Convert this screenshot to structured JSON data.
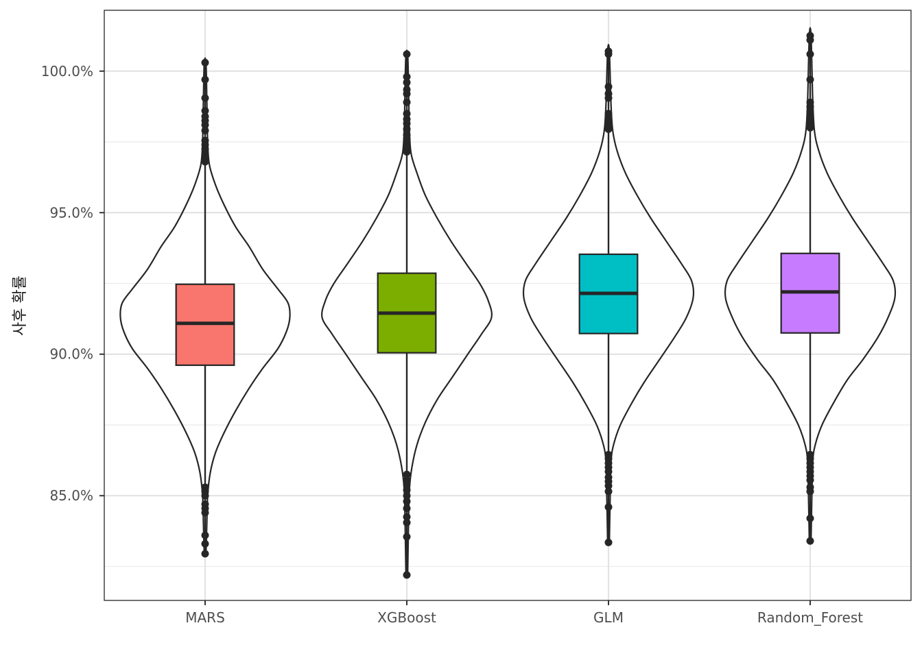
{
  "chart_data": {
    "type": "violin+box",
    "title": "",
    "xlabel": "",
    "ylabel": "사후 확률",
    "ylim": [
      81.3,
      102.15
    ],
    "y_ticks": [
      85,
      90,
      95,
      100
    ],
    "y_tick_labels": [
      "85.0%",
      "90.0%",
      "95.0%",
      "100.0%"
    ],
    "y_minor_ticks": [
      82.5,
      87.5,
      92.5,
      97.5
    ],
    "grid": true,
    "legend": "none",
    "categories": [
      "MARS",
      "XGBoost",
      "GLM",
      "Random_Forest"
    ],
    "series": [
      {
        "name": "MARS",
        "color": "#F8766D",
        "q1": 89.61,
        "median": 91.09,
        "q3": 92.47,
        "whisker_low": 85.45,
        "whisker_high": 96.7,
        "outliers_high": [
          96.8,
          96.95,
          97.1,
          97.25,
          97.4,
          97.55,
          97.9,
          98.1,
          98.25,
          98.4,
          98.6,
          99.05,
          99.7,
          100.3
        ],
        "outliers_low": [
          85.3,
          85.15,
          85.0,
          84.7,
          84.55,
          84.4,
          83.6,
          83.3,
          82.95
        ],
        "violin": [
          [
            82.95,
            0.01
          ],
          [
            84.0,
            0.02
          ],
          [
            85.0,
            0.03
          ],
          [
            85.8,
            0.06
          ],
          [
            86.5,
            0.12
          ],
          [
            87.2,
            0.22
          ],
          [
            88.0,
            0.36
          ],
          [
            88.8,
            0.52
          ],
          [
            89.5,
            0.68
          ],
          [
            90.2,
            0.86
          ],
          [
            90.8,
            0.96
          ],
          [
            91.3,
            1.0
          ],
          [
            91.8,
            0.98
          ],
          [
            92.3,
            0.86
          ],
          [
            93.0,
            0.68
          ],
          [
            93.8,
            0.52
          ],
          [
            94.5,
            0.36
          ],
          [
            95.3,
            0.22
          ],
          [
            96.0,
            0.12
          ],
          [
            96.7,
            0.05
          ],
          [
            97.5,
            0.03
          ],
          [
            99.0,
            0.02
          ],
          [
            100.3,
            0.01
          ]
        ]
      },
      {
        "name": "XGBoost",
        "color": "#7CAE00",
        "q1": 90.05,
        "median": 91.45,
        "q3": 92.86,
        "whisker_low": 85.86,
        "whisker_high": 97.07,
        "outliers_high": [
          97.15,
          97.3,
          97.45,
          97.6,
          97.75,
          97.95,
          98.15,
          98.3,
          98.5,
          98.9,
          99.2,
          99.35,
          99.6,
          99.8,
          100.6
        ],
        "outliers_low": [
          85.75,
          85.55,
          85.4,
          85.2,
          85.0,
          84.8,
          84.55,
          84.25,
          84.05,
          83.55,
          82.2
        ],
        "violin": [
          [
            82.2,
            0.01
          ],
          [
            84.0,
            0.02
          ],
          [
            85.2,
            0.03
          ],
          [
            86.0,
            0.06
          ],
          [
            86.8,
            0.12
          ],
          [
            87.6,
            0.22
          ],
          [
            88.4,
            0.36
          ],
          [
            89.2,
            0.54
          ],
          [
            90.0,
            0.72
          ],
          [
            90.7,
            0.88
          ],
          [
            91.3,
            1.0
          ],
          [
            91.9,
            0.96
          ],
          [
            92.5,
            0.86
          ],
          [
            93.2,
            0.7
          ],
          [
            94.0,
            0.52
          ],
          [
            94.8,
            0.36
          ],
          [
            95.6,
            0.22
          ],
          [
            96.4,
            0.12
          ],
          [
            97.1,
            0.05
          ],
          [
            98.0,
            0.03
          ],
          [
            99.5,
            0.02
          ],
          [
            100.6,
            0.01
          ]
        ]
      },
      {
        "name": "GLM",
        "color": "#00BFC4",
        "q1": 90.73,
        "median": 92.15,
        "q3": 93.53,
        "whisker_low": 86.54,
        "whisker_high": 97.87,
        "outliers_high": [
          97.95,
          98.05,
          98.15,
          98.35,
          98.5,
          99.05,
          99.2,
          99.45,
          100.6,
          100.7
        ],
        "outliers_low": [
          86.45,
          86.3,
          86.15,
          86.0,
          85.85,
          85.65,
          85.5,
          85.35,
          85.15,
          84.6,
          83.35
        ],
        "violin": [
          [
            83.35,
            0.01
          ],
          [
            85.0,
            0.02
          ],
          [
            86.2,
            0.03
          ],
          [
            86.8,
            0.06
          ],
          [
            87.5,
            0.14
          ],
          [
            88.3,
            0.28
          ],
          [
            89.0,
            0.42
          ],
          [
            89.8,
            0.6
          ],
          [
            90.6,
            0.78
          ],
          [
            91.3,
            0.92
          ],
          [
            92.0,
            1.0
          ],
          [
            92.6,
            0.98
          ],
          [
            93.2,
            0.86
          ],
          [
            94.0,
            0.68
          ],
          [
            94.8,
            0.5
          ],
          [
            95.6,
            0.34
          ],
          [
            96.4,
            0.2
          ],
          [
            97.2,
            0.1
          ],
          [
            97.9,
            0.05
          ],
          [
            98.8,
            0.03
          ],
          [
            100.7,
            0.01
          ]
        ]
      },
      {
        "name": "Random_Forest",
        "color": "#C77CFF",
        "q1": 90.75,
        "median": 92.2,
        "q3": 93.56,
        "whisker_low": 86.54,
        "whisker_high": 97.92,
        "outliers_high": [
          98.0,
          98.1,
          98.25,
          98.4,
          98.55,
          98.75,
          98.9,
          99.7,
          100.6,
          101.1,
          101.25
        ],
        "outliers_low": [
          86.45,
          86.3,
          86.15,
          86.0,
          85.85,
          85.7,
          85.55,
          85.3,
          85.15,
          84.2,
          83.4
        ],
        "violin": [
          [
            83.4,
            0.01
          ],
          [
            85.0,
            0.02
          ],
          [
            86.2,
            0.03
          ],
          [
            86.8,
            0.06
          ],
          [
            87.5,
            0.14
          ],
          [
            88.3,
            0.28
          ],
          [
            89.1,
            0.44
          ],
          [
            89.8,
            0.62
          ],
          [
            90.6,
            0.8
          ],
          [
            91.3,
            0.92
          ],
          [
            92.0,
            1.0
          ],
          [
            92.6,
            0.98
          ],
          [
            93.2,
            0.86
          ],
          [
            94.0,
            0.68
          ],
          [
            94.8,
            0.5
          ],
          [
            95.6,
            0.34
          ],
          [
            96.4,
            0.2
          ],
          [
            97.2,
            0.1
          ],
          [
            97.9,
            0.05
          ],
          [
            99.0,
            0.03
          ],
          [
            101.25,
            0.01
          ]
        ]
      }
    ]
  }
}
